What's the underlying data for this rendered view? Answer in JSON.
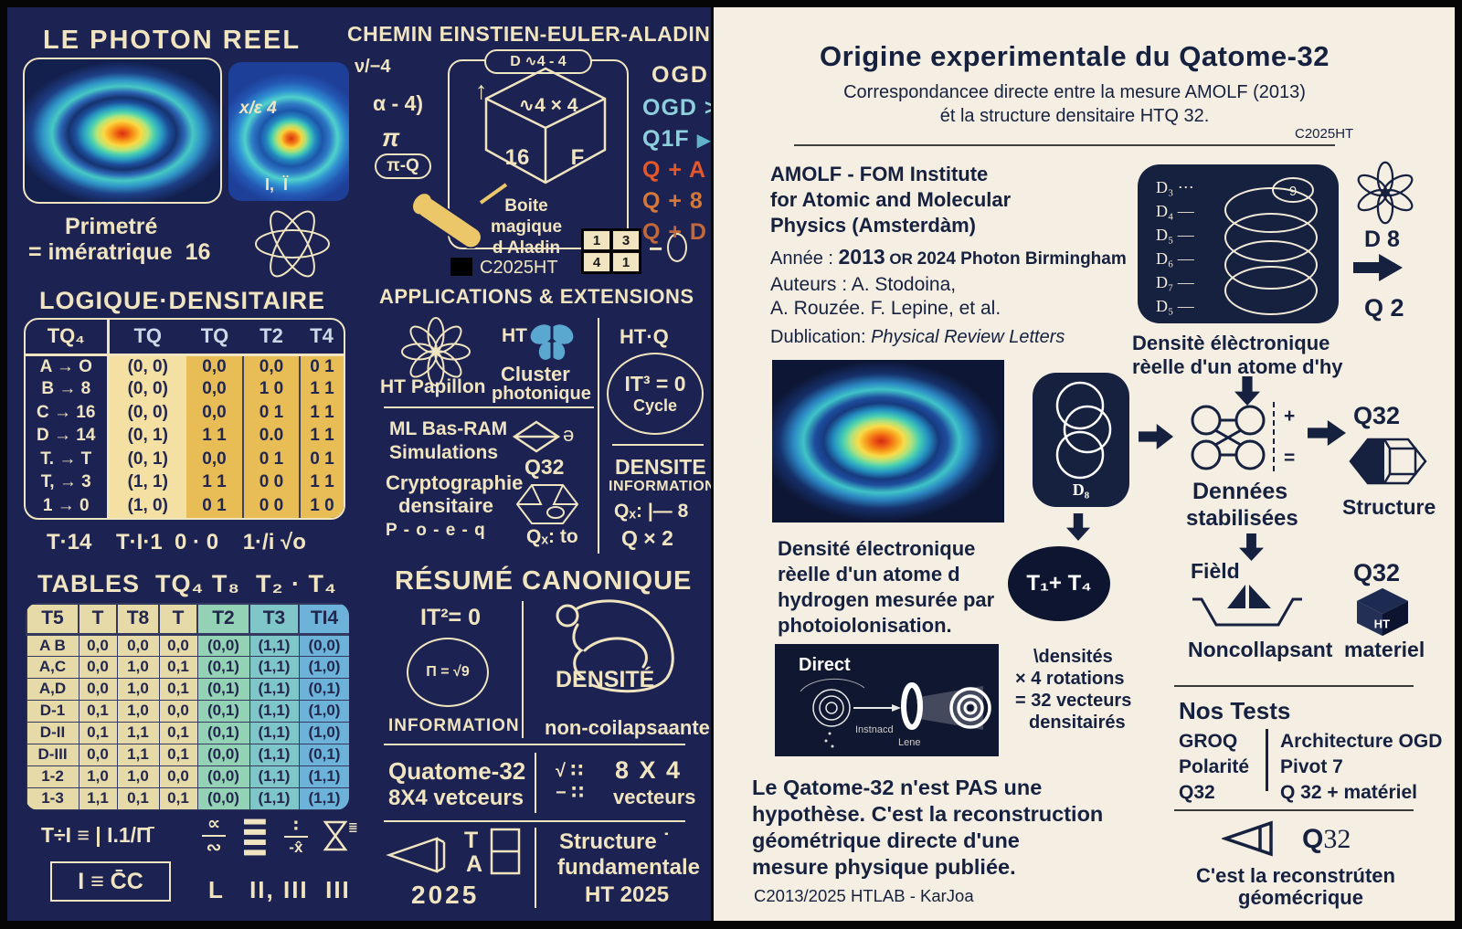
{
  "palette": {
    "navy": "#1c2251",
    "navy-deep": "#131a42",
    "cream": "#f0e5c0",
    "gold": "#e9bd55",
    "gold-light": "#f4e0a2",
    "tan": "#e7daa9",
    "teal-a": "#93d2b5",
    "teal-b": "#7fc6c9",
    "teal-c": "#6db3d9",
    "sky": "#8ecfdd",
    "orange-a": "#e2572c",
    "orange-b": "#d4773b",
    "orange-c": "#c2683a",
    "paper": "#f4efe2",
    "ink": "#16203f"
  },
  "left": {
    "photon": {
      "title": "LE PHOTON REEL",
      "inset_label": "x/ɛ 4",
      "inset_sub": "Ι,  Ϊ",
      "caption1": "Primetré",
      "caption2": "= imératrique  16"
    },
    "logique": {
      "title": "LOGIQUE·DENSITAIRE",
      "table": {
        "headers": [
          "TQ₄",
          "TQ",
          "TQ",
          "T2",
          "T4"
        ],
        "rows": [
          [
            "A → O",
            "(0, 0)",
            "0,0",
            "0,0",
            "0 1"
          ],
          [
            "B → 8",
            "(0, 0)",
            "0,0",
            "1 0",
            "1 1"
          ],
          [
            "C → 16",
            "(0, 0)",
            "0,0",
            "0 1",
            "1 1"
          ],
          [
            "D → 14",
            "(0, 1)",
            "1 1",
            "0.0",
            "1 1"
          ],
          [
            "T. → T",
            "(0, 1)",
            "0,0",
            "0 1",
            "0 1"
          ],
          [
            "T, → 3",
            "(1, 1)",
            "1 1",
            "0 0",
            "1 1"
          ],
          [
            "1 → 0",
            "(1, 0)",
            "0 1",
            "0 0",
            "1 0"
          ]
        ]
      },
      "footer": "T·14    T·I·1  0 · 0    1·/i √o"
    },
    "tables": {
      "title": "TABLES  TQ₄ T₈  T₂ · T₄",
      "table": {
        "headers": [
          "T5",
          "T",
          "T8",
          "T",
          "T2",
          "T3",
          "TI4"
        ],
        "rows": [
          [
            "A B",
            "0,0",
            "0,0",
            "0,0",
            "(0,0)",
            "(1,1)",
            "(0,0)"
          ],
          [
            "A,C",
            "0,0",
            "1,0",
            "0,1",
            "(0,1)",
            "(1,1)",
            "(1,0)"
          ],
          [
            "A,D",
            "0,0",
            "1,0",
            "0,1",
            "(0,1)",
            "(1,1)",
            "(0,1)"
          ],
          [
            "D-1",
            "0,1",
            "1,0",
            "0,0",
            "(0,1)",
            "(1,1)",
            "(1,0)"
          ],
          [
            "D-II",
            "0,1",
            "1,1",
            "0,1",
            "(0,1)",
            "(1,1)",
            "(1,0)"
          ],
          [
            "D-III",
            "0,0",
            "1,1",
            "0,1",
            "(0,0)",
            "(1,1)",
            "(0,1)"
          ],
          [
            "1-2",
            "1,0",
            "1,0",
            "0,0",
            "(0,0)",
            "(1,1)",
            "(1,1)"
          ],
          [
            "1-3",
            "1,1",
            "0,1",
            "0,1",
            "(0,0)",
            "(1,1)",
            "(1,1)"
          ]
        ]
      },
      "formula1": "T÷I ≡ | I.1/Π̄",
      "formula_boxed": "I ≡ C̄C",
      "sym_frac1_top": "∝",
      "sym_frac1_bot": "∾",
      "sym_stack": "≣",
      "sym_frac2_top": "∶",
      "sym_frac2_bot": "-x̂",
      "sym_small_stack": "≣",
      "roman": "L   II, III  III"
    },
    "chemin": {
      "title": "CHEMIN EINSTIEN-EULER-ALADIN",
      "math1": "ν/−4",
      "math2": "α - 4)",
      "math3": "π",
      "math4": "π-Q",
      "pill": "D ∿4 - 4",
      "arrow_up": "↑",
      "cube_top": "∿4 × 4",
      "cube_left": "16",
      "cube_right": "F",
      "box_cap1": "Boite",
      "box_cap2": "magique",
      "box_cap3": "d Aladin",
      "copyright": "C2025HT",
      "grid": {
        "a": "1",
        "b": "3",
        "c": "4",
        "d": "1"
      },
      "minus": "−",
      "ogd_title": "OGD",
      "ogd_items": [
        {
          "label": "OGD >",
          "glyph": ""
        },
        {
          "label": "Q1F ",
          "glyph": "▶"
        },
        {
          "label": "Q + A ",
          "glyph": "◆"
        },
        {
          "label": "Q + 8 ",
          "glyph": "▲"
        },
        {
          "label": "Q + D ",
          "glyph": "▲"
        }
      ]
    },
    "applications": {
      "title": "APPLICATIONS & EXTENSIONS",
      "papillon": "HT Papillon",
      "ht": "HT",
      "cluster1": "Cluster",
      "cluster2": "photonique",
      "ml1": "ML Bas-RAM",
      "ml2": "Simulations",
      "schwa": "ə",
      "q32": "Q32",
      "crypto1": "Cryptographie",
      "crypto2": "densitaire",
      "poeq": "P - o - e - q",
      "qx_to": "Qₓ: to",
      "htq": "HT·Q",
      "cycle_eq": "IT³ = 0",
      "cycle": "Cycle",
      "densite1": "DENSITE",
      "densite2": "INFORMATION",
      "qx8": "Qₓ: |— 8",
      "qx2": "Q × 2"
    },
    "resume": {
      "title": "RÉSUMÉ CANONIQUE",
      "it2": "IT²= 0",
      "pi_eq": "Π = √9",
      "information": "INFORMATION",
      "densite": "DENSITÉ",
      "noncollapse": "non-coilapsaante",
      "quatome1": "Quatome-32",
      "quatome2": "8X4 vetceurs",
      "sqrt_top": "√ ∷",
      "sqrt_bot": "− ∷",
      "v84": "8 X 4",
      "vecteurs": "vecteurs",
      "t": "T",
      "a": "A",
      "year": "2025",
      "struct1": "Structure ˙",
      "struct2": "fundamentale",
      "struct3": "HT 2025"
    }
  },
  "right": {
    "title": "Origine experimentale du Qatome-32",
    "sub1": "Correspondancee directe entre la mesure AMOLF (2013)",
    "sub2": "ét la structure densitaire HTQ 32.",
    "copyright": "C2025HT",
    "amolf1": "AMOLF - FOM Institute",
    "amolf2": "for Atomic and Molecular",
    "amolf3": "Physics (Amsterdàm)",
    "annee_label": "Année : ",
    "annee_year": "2013",
    "annee_or": " OR ",
    "annee_rest": "2024 Photon Birmingham",
    "auteurs1": "Auteurs : A. Stodoina,",
    "auteurs2": "A. Rouzée. F. Lepine, et al.",
    "publication_label": "Dublication: ",
    "publication_journal": "Physical Review Letters",
    "photo_caption": [
      "Densité électronique",
      "rèelle d'un atome d",
      "hydrogen mesurée par",
      "photoiolonisation."
    ],
    "direct": {
      "title": "Direct",
      "label1": "Instnacd",
      "label2": "Lene"
    },
    "statement": [
      "Le Qatome-32 n'est PAS une",
      "hypothèse. C'est la reconstruction",
      "géométrique directe d'une",
      "mesure physique publiée."
    ],
    "credit": "C2013/2025 HTLAB - KarJoa",
    "coil": {
      "labels": [
        "D₃ ⋯",
        "D₄ —",
        "D₅ —",
        "D₆ —",
        "D₇ —",
        "D₅ —"
      ],
      "nine": "9"
    },
    "d8_flower": "D 8",
    "q2": "Q 2",
    "coil_caption1": "Densitè élèctronique",
    "coil_caption2": "rèelle d'un atome d'hy",
    "d8_box": "D₈",
    "t1t4": "T₁+ T₄",
    "plus": "+",
    "equals": "=",
    "q32_structure": "Q32",
    "structure": "Structure",
    "dennees1": "Dennées",
    "dennees2": "stabilisées",
    "field": "Fièld",
    "noncollapsant": "Noncollapsant",
    "q32_materiel": "Q32",
    "materiel": "materiel",
    "cube_glyph": "HT",
    "densites": [
      "\\densités",
      "× 4 rotations",
      "= 32 vecteurs",
      "densitairés"
    ],
    "tests": {
      "title": "Nos Tests",
      "left": [
        "GROQ",
        "Polarité",
        "Q32"
      ],
      "right": [
        "Architecture OGD",
        "Pivot 7",
        "Q 32 + matériel"
      ]
    },
    "q32_bottom_q": "Q",
    "q32_bottom_n": "32",
    "bottom1": "C'est la reconstrúten",
    "bottom2": "géomécrique"
  }
}
